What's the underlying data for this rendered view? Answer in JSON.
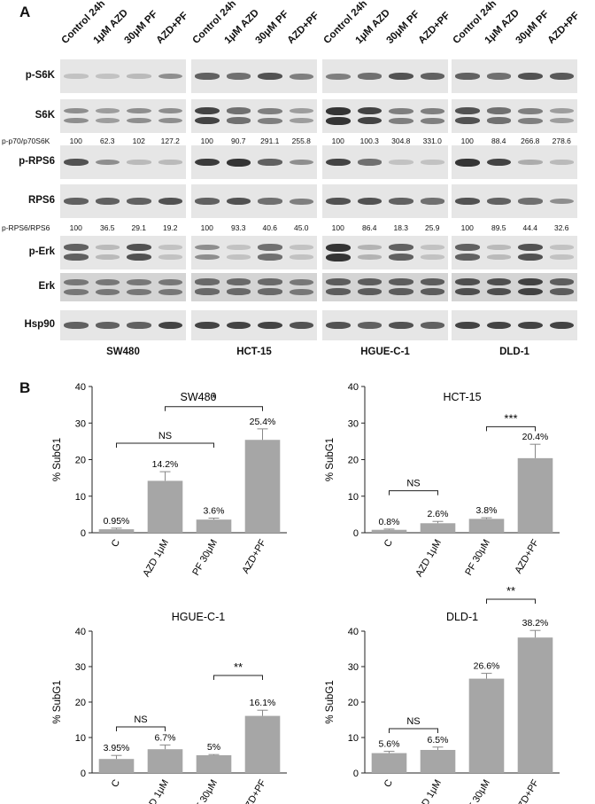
{
  "panel_a": {
    "letter": "A",
    "lanes": [
      "Control 24h",
      "1μM AZD",
      "30μM PF",
      "AZD+PF"
    ],
    "rows": [
      "p-S6K",
      "S6K",
      "p-RPS6",
      "RPS6",
      "p-Erk",
      "Erk",
      "Hsp90"
    ],
    "ratio1_label": "p-p70/p70S6K",
    "ratio2_label": "p-RPS6/RPS6",
    "cell_lines": [
      {
        "name": "SW480",
        "ratio1": [
          "100",
          "62.3",
          "102",
          "127.2"
        ],
        "ratio2": [
          "100",
          "36.5",
          "29.1",
          "19.2"
        ]
      },
      {
        "name": "HCT-15",
        "ratio1": [
          "100",
          "90.7",
          "291.1",
          "255.8"
        ],
        "ratio2": [
          "100",
          "93.3",
          "40.6",
          "45.0"
        ]
      },
      {
        "name": "HGUE-C-1",
        "ratio1": [
          "100",
          "100.3",
          "304.8",
          "331.0"
        ],
        "ratio2": [
          "100",
          "86.4",
          "18.3",
          "25.9"
        ]
      },
      {
        "name": "DLD-1",
        "ratio1": [
          "100",
          "88.4",
          "266.8",
          "278.6"
        ],
        "ratio2": [
          "100",
          "89.5",
          "44.4",
          "32.6"
        ]
      }
    ]
  },
  "panel_b": {
    "letter": "B",
    "ylabel": "% SubG1"
  },
  "chart_data": [
    {
      "type": "bar",
      "title": "SW480",
      "ylabel": "% SubG1",
      "categories": [
        "C",
        "AZD 1μM",
        "PF 30μM",
        "AZD+PF"
      ],
      "values": [
        0.95,
        14.2,
        3.6,
        25.4
      ],
      "errors": [
        0.3,
        2.5,
        0.4,
        3.0
      ],
      "value_labels": [
        "0.95%",
        "14.2%",
        "3.6%",
        "25.4%"
      ],
      "ylim": [
        0,
        40
      ],
      "yticks": [
        "0",
        "10",
        "20",
        "30",
        "40"
      ],
      "brackets": [
        {
          "from": 1,
          "to": 3,
          "label": "*",
          "level": 34.5
        },
        {
          "from": 0,
          "to": 2,
          "label": "NS",
          "level": 24.5
        }
      ]
    },
    {
      "type": "bar",
      "title": "HCT-15",
      "ylabel": "% SubG1",
      "categories": [
        "C",
        "AZD 1μM",
        "PF 30μM",
        "AZD+PF"
      ],
      "values": [
        0.8,
        2.6,
        3.8,
        20.4
      ],
      "errors": [
        0.2,
        0.5,
        0.3,
        3.8
      ],
      "value_labels": [
        "0.8%",
        "2.6%",
        "3.8%",
        "20.4%"
      ],
      "ylim": [
        0,
        40
      ],
      "yticks": [
        "0",
        "10",
        "20",
        "30",
        "40"
      ],
      "brackets": [
        {
          "from": 2,
          "to": 3,
          "label": "***",
          "level": 29.0
        },
        {
          "from": 0,
          "to": 1,
          "label": "NS",
          "level": 11.5
        }
      ]
    },
    {
      "type": "bar",
      "title": "HGUE-C-1",
      "ylabel": "% SubG1",
      "categories": [
        "C",
        "AZD 1μM",
        "PF 30μM",
        "AZD+PF"
      ],
      "values": [
        3.95,
        6.7,
        5.0,
        16.1
      ],
      "errors": [
        1.0,
        1.2,
        0.2,
        1.6
      ],
      "value_labels": [
        "3.95%",
        "6.7%",
        "5%",
        "16.1%"
      ],
      "ylim": [
        0,
        40
      ],
      "yticks": [
        "0",
        "10",
        "20",
        "30",
        "40"
      ],
      "brackets": [
        {
          "from": 2,
          "to": 3,
          "label": "**",
          "level": 27.5
        },
        {
          "from": 0,
          "to": 1,
          "label": "NS",
          "level": 13.0
        }
      ]
    },
    {
      "type": "bar",
      "title": "DLD-1",
      "ylabel": "% SubG1",
      "categories": [
        "C",
        "AZD 1μM",
        "PF 30μM",
        "AZD+PF"
      ],
      "values": [
        5.6,
        6.5,
        26.6,
        38.2
      ],
      "errors": [
        0.5,
        0.8,
        1.5,
        2.0
      ],
      "value_labels": [
        "5.6%",
        "6.5%",
        "26.6%",
        "38.2%"
      ],
      "ylim": [
        0,
        40
      ],
      "yticks": [
        "0",
        "10",
        "20",
        "30",
        "40"
      ],
      "brackets": [
        {
          "from": 2,
          "to": 3,
          "label": "**",
          "level": 49.0
        },
        {
          "from": 0,
          "to": 1,
          "label": "NS",
          "level": 12.5
        }
      ]
    }
  ]
}
